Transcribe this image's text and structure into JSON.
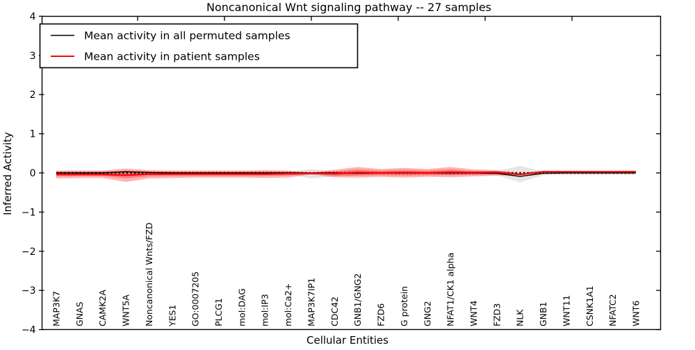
{
  "chart_data": {
    "type": "line",
    "title": "Noncanonical Wnt signaling pathway -- 27 samples",
    "xlabel": "Cellular Entities",
    "ylabel": "Inferred Activity",
    "ylim": [
      -4,
      4
    ],
    "yticks": [
      4,
      3,
      2,
      1,
      0,
      -1,
      -2,
      -3,
      -4
    ],
    "ytick_labels": [
      "4",
      "3",
      "2",
      "1",
      "0",
      "−1",
      "−2",
      "−3",
      "−4"
    ],
    "grid": false,
    "legend_position": "upper left",
    "categories": [
      "MAP3K7",
      "GNAS",
      "CAMK2A",
      "WNT5A",
      "Noncanonical Wnts/FZD",
      "YES1",
      "GO:0007205",
      "PLCG1",
      "mol:DAG",
      "mol:IP3",
      "mol:Ca2+",
      "MAP3K7IP1",
      "CDC42",
      "GNB1/GNG2",
      "FZD6",
      "G protein",
      "GNG2",
      "NFAT1/CK1 alpha",
      "WNT4",
      "FZD3",
      "NLK",
      "GNB1",
      "WNT11",
      "CSNK1A1",
      "NFATC2",
      "WNT6"
    ],
    "legend": [
      {
        "label": "Mean activity in all permuted samples",
        "color": "#000000"
      },
      {
        "label": "Mean activity in patient samples",
        "color": "#ff0000"
      }
    ],
    "series": [
      {
        "name": "Mean activity in all permuted samples",
        "color": "#000000",
        "width": 1.4,
        "values": [
          0,
          0,
          0,
          0.03,
          0.01,
          0,
          0,
          0,
          0,
          0,
          0,
          0,
          0,
          -0.01,
          0,
          0,
          0,
          0,
          0,
          -0.01,
          -0.09,
          -0.01,
          0,
          0,
          0,
          0
        ]
      },
      {
        "name": "Mean activity in patient samples",
        "color": "#ff0000",
        "width": 2.2,
        "values": [
          -0.04,
          -0.04,
          -0.04,
          -0.06,
          -0.03,
          -0.03,
          -0.03,
          -0.03,
          -0.03,
          -0.03,
          -0.02,
          -0.01,
          -0.02,
          0.01,
          0,
          0.01,
          0,
          0.02,
          0.01,
          0.02,
          -0.04,
          0.03,
          0.03,
          0.03,
          0.03,
          0.03
        ]
      }
    ],
    "bands": [
      {
        "name": "permuted-std-band",
        "color": "#888888",
        "opacity": 0.22,
        "upper": [
          0.03,
          0.03,
          0.03,
          0.05,
          0.04,
          0.03,
          0.03,
          0.03,
          0.03,
          0.03,
          0.03,
          0.1,
          0.05,
          0.04,
          0.03,
          0.04,
          0.03,
          0.05,
          0.03,
          0.04,
          0.18,
          0.04,
          0.04,
          0.04,
          0.04,
          0.04
        ],
        "lower": [
          -0.04,
          -0.04,
          -0.04,
          -0.06,
          -0.05,
          -0.04,
          -0.04,
          -0.04,
          -0.04,
          -0.04,
          -0.04,
          -0.14,
          -0.09,
          -0.06,
          -0.04,
          -0.05,
          -0.04,
          -0.06,
          -0.04,
          -0.06,
          -0.24,
          -0.06,
          -0.05,
          -0.05,
          -0.05,
          -0.05
        ]
      },
      {
        "name": "patient-std-band-outer",
        "color": "#ff0000",
        "opacity": 0.3,
        "upper": [
          0.06,
          0.06,
          0.06,
          0.11,
          0.07,
          0.06,
          0.06,
          0.06,
          0.06,
          0.07,
          0.06,
          0.01,
          0.08,
          0.15,
          0.1,
          0.13,
          0.1,
          0.15,
          0.09,
          0.07,
          0.0,
          0.05,
          0.045,
          0.045,
          0.045,
          0.06
        ],
        "lower": [
          -0.14,
          -0.13,
          -0.13,
          -0.23,
          -0.14,
          -0.13,
          -0.12,
          -0.12,
          -0.12,
          -0.13,
          -0.12,
          -0.04,
          -0.11,
          -0.12,
          -0.1,
          -0.12,
          -0.1,
          -0.11,
          -0.09,
          -0.07,
          -0.06,
          0.0,
          0.015,
          0.015,
          0.015,
          -0.01
        ]
      },
      {
        "name": "patient-std-band-inner",
        "color": "#ff0000",
        "opacity": 0.28,
        "upper": [
          0.03,
          0.03,
          0.03,
          0.06,
          0.04,
          0.03,
          0.03,
          0.03,
          0.03,
          0.04,
          0.03,
          0.0,
          0.04,
          0.09,
          0.06,
          0.08,
          0.06,
          0.09,
          0.05,
          0.04,
          -0.02,
          0.045,
          0.04,
          0.04,
          0.04,
          0.05
        ],
        "lower": [
          -0.09,
          -0.08,
          -0.08,
          -0.14,
          -0.09,
          -0.08,
          -0.08,
          -0.08,
          -0.08,
          -0.08,
          -0.07,
          -0.02,
          -0.07,
          -0.07,
          -0.06,
          -0.07,
          -0.06,
          -0.06,
          -0.05,
          -0.04,
          -0.05,
          0.01,
          0.02,
          0.02,
          0.02,
          0.01
        ]
      }
    ],
    "zero_line": {
      "value": 0,
      "style": "dotted",
      "color": "#000000"
    },
    "layout": {
      "top_tick_x": [
        198,
        323,
        448,
        573,
        698,
        823
      ]
    }
  }
}
